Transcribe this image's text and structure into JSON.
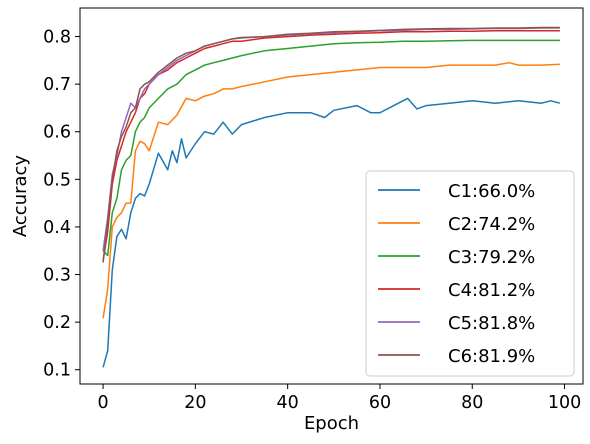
{
  "chart_data": {
    "type": "line",
    "xlabel": "Epoch",
    "ylabel": "Accuracy",
    "xlim": [
      -5,
      104
    ],
    "ylim": [
      0.07,
      0.86
    ],
    "xticks": [
      0,
      20,
      40,
      60,
      80,
      100
    ],
    "yticks": [
      0.1,
      0.2,
      0.3,
      0.4,
      0.5,
      0.6,
      0.7,
      0.8
    ],
    "xtick_labels": [
      "0",
      "20",
      "40",
      "60",
      "80",
      "100"
    ],
    "ytick_labels": [
      "0.1",
      "0.2",
      "0.3",
      "0.4",
      "0.5",
      "0.6",
      "0.7",
      "0.8"
    ],
    "grid": false,
    "legend_position": "lower-right",
    "series": [
      {
        "name": "C1:66.0%",
        "color": "#1f77b4",
        "points": [
          [
            0,
            0.105
          ],
          [
            1,
            0.14
          ],
          [
            2,
            0.31
          ],
          [
            3,
            0.38
          ],
          [
            4,
            0.395
          ],
          [
            5,
            0.375
          ],
          [
            6,
            0.43
          ],
          [
            7,
            0.46
          ],
          [
            8,
            0.47
          ],
          [
            9,
            0.465
          ],
          [
            10,
            0.49
          ],
          [
            12,
            0.555
          ],
          [
            14,
            0.52
          ],
          [
            15,
            0.56
          ],
          [
            16,
            0.535
          ],
          [
            17,
            0.585
          ],
          [
            18,
            0.545
          ],
          [
            20,
            0.575
          ],
          [
            22,
            0.6
          ],
          [
            24,
            0.595
          ],
          [
            26,
            0.62
          ],
          [
            28,
            0.595
          ],
          [
            30,
            0.615
          ],
          [
            35,
            0.63
          ],
          [
            40,
            0.64
          ],
          [
            45,
            0.64
          ],
          [
            48,
            0.63
          ],
          [
            50,
            0.645
          ],
          [
            55,
            0.655
          ],
          [
            58,
            0.64
          ],
          [
            60,
            0.64
          ],
          [
            63,
            0.655
          ],
          [
            66,
            0.67
          ],
          [
            68,
            0.648
          ],
          [
            70,
            0.655
          ],
          [
            75,
            0.66
          ],
          [
            80,
            0.665
          ],
          [
            85,
            0.66
          ],
          [
            90,
            0.665
          ],
          [
            95,
            0.66
          ],
          [
            97,
            0.665
          ],
          [
            99,
            0.66
          ]
        ]
      },
      {
        "name": "C2:74.2%",
        "color": "#ff7f0e",
        "points": [
          [
            0,
            0.208
          ],
          [
            1,
            0.27
          ],
          [
            2,
            0.4
          ],
          [
            3,
            0.42
          ],
          [
            4,
            0.43
          ],
          [
            5,
            0.45
          ],
          [
            6,
            0.45
          ],
          [
            7,
            0.56
          ],
          [
            8,
            0.58
          ],
          [
            9,
            0.575
          ],
          [
            10,
            0.56
          ],
          [
            12,
            0.62
          ],
          [
            14,
            0.615
          ],
          [
            16,
            0.635
          ],
          [
            18,
            0.67
          ],
          [
            20,
            0.665
          ],
          [
            22,
            0.675
          ],
          [
            24,
            0.68
          ],
          [
            26,
            0.69
          ],
          [
            28,
            0.69
          ],
          [
            30,
            0.695
          ],
          [
            35,
            0.705
          ],
          [
            40,
            0.715
          ],
          [
            45,
            0.72
          ],
          [
            50,
            0.725
          ],
          [
            55,
            0.73
          ],
          [
            60,
            0.735
          ],
          [
            65,
            0.735
          ],
          [
            70,
            0.735
          ],
          [
            75,
            0.74
          ],
          [
            80,
            0.74
          ],
          [
            85,
            0.74
          ],
          [
            88,
            0.745
          ],
          [
            90,
            0.74
          ],
          [
            95,
            0.74
          ],
          [
            99,
            0.742
          ]
        ]
      },
      {
        "name": "C3:79.2%",
        "color": "#2ca02c",
        "points": [
          [
            0,
            0.35
          ],
          [
            1,
            0.34
          ],
          [
            2,
            0.43
          ],
          [
            3,
            0.46
          ],
          [
            4,
            0.52
          ],
          [
            5,
            0.54
          ],
          [
            6,
            0.55
          ],
          [
            7,
            0.6
          ],
          [
            8,
            0.62
          ],
          [
            9,
            0.63
          ],
          [
            10,
            0.65
          ],
          [
            12,
            0.67
          ],
          [
            14,
            0.69
          ],
          [
            16,
            0.7
          ],
          [
            18,
            0.72
          ],
          [
            20,
            0.73
          ],
          [
            22,
            0.74
          ],
          [
            24,
            0.745
          ],
          [
            26,
            0.75
          ],
          [
            28,
            0.755
          ],
          [
            30,
            0.76
          ],
          [
            35,
            0.77
          ],
          [
            40,
            0.775
          ],
          [
            45,
            0.78
          ],
          [
            50,
            0.785
          ],
          [
            55,
            0.787
          ],
          [
            60,
            0.788
          ],
          [
            65,
            0.79
          ],
          [
            70,
            0.79
          ],
          [
            75,
            0.791
          ],
          [
            80,
            0.792
          ],
          [
            85,
            0.792
          ],
          [
            90,
            0.792
          ],
          [
            95,
            0.792
          ],
          [
            99,
            0.792
          ]
        ]
      },
      {
        "name": "C4:81.2%",
        "color": "#d62728",
        "points": [
          [
            0,
            0.33
          ],
          [
            1,
            0.39
          ],
          [
            2,
            0.49
          ],
          [
            3,
            0.54
          ],
          [
            4,
            0.57
          ],
          [
            5,
            0.6
          ],
          [
            6,
            0.62
          ],
          [
            7,
            0.64
          ],
          [
            8,
            0.67
          ],
          [
            9,
            0.68
          ],
          [
            10,
            0.7
          ],
          [
            12,
            0.72
          ],
          [
            14,
            0.73
          ],
          [
            16,
            0.745
          ],
          [
            18,
            0.755
          ],
          [
            20,
            0.765
          ],
          [
            22,
            0.775
          ],
          [
            24,
            0.78
          ],
          [
            26,
            0.785
          ],
          [
            28,
            0.79
          ],
          [
            30,
            0.79
          ],
          [
            35,
            0.797
          ],
          [
            40,
            0.8
          ],
          [
            45,
            0.803
          ],
          [
            50,
            0.805
          ],
          [
            55,
            0.807
          ],
          [
            60,
            0.808
          ],
          [
            65,
            0.81
          ],
          [
            70,
            0.81
          ],
          [
            75,
            0.811
          ],
          [
            80,
            0.811
          ],
          [
            85,
            0.812
          ],
          [
            90,
            0.812
          ],
          [
            95,
            0.812
          ],
          [
            99,
            0.812
          ]
        ]
      },
      {
        "name": "C5:81.8%",
        "color": "#9467bd",
        "points": [
          [
            0,
            0.35
          ],
          [
            1,
            0.42
          ],
          [
            2,
            0.51
          ],
          [
            3,
            0.55
          ],
          [
            4,
            0.6
          ],
          [
            5,
            0.63
          ],
          [
            6,
            0.66
          ],
          [
            7,
            0.65
          ],
          [
            8,
            0.67
          ],
          [
            9,
            0.69
          ],
          [
            10,
            0.7
          ],
          [
            12,
            0.72
          ],
          [
            14,
            0.735
          ],
          [
            16,
            0.75
          ],
          [
            18,
            0.76
          ],
          [
            20,
            0.77
          ],
          [
            22,
            0.78
          ],
          [
            24,
            0.785
          ],
          [
            26,
            0.79
          ],
          [
            28,
            0.795
          ],
          [
            30,
            0.797
          ],
          [
            35,
            0.8
          ],
          [
            40,
            0.803
          ],
          [
            45,
            0.806
          ],
          [
            50,
            0.808
          ],
          [
            55,
            0.81
          ],
          [
            60,
            0.812
          ],
          [
            65,
            0.813
          ],
          [
            70,
            0.815
          ],
          [
            75,
            0.815
          ],
          [
            80,
            0.816
          ],
          [
            85,
            0.817
          ],
          [
            90,
            0.817
          ],
          [
            95,
            0.818
          ],
          [
            99,
            0.818
          ]
        ]
      },
      {
        "name": "C6:81.9%",
        "color": "#8c564b",
        "points": [
          [
            0,
            0.325
          ],
          [
            1,
            0.41
          ],
          [
            2,
            0.5
          ],
          [
            3,
            0.56
          ],
          [
            4,
            0.59
          ],
          [
            5,
            0.61
          ],
          [
            6,
            0.64
          ],
          [
            7,
            0.65
          ],
          [
            8,
            0.69
          ],
          [
            9,
            0.7
          ],
          [
            10,
            0.705
          ],
          [
            12,
            0.725
          ],
          [
            14,
            0.74
          ],
          [
            16,
            0.755
          ],
          [
            18,
            0.765
          ],
          [
            20,
            0.77
          ],
          [
            22,
            0.78
          ],
          [
            24,
            0.785
          ],
          [
            26,
            0.79
          ],
          [
            28,
            0.795
          ],
          [
            30,
            0.798
          ],
          [
            35,
            0.8
          ],
          [
            40,
            0.805
          ],
          [
            45,
            0.807
          ],
          [
            50,
            0.81
          ],
          [
            55,
            0.811
          ],
          [
            60,
            0.813
          ],
          [
            65,
            0.815
          ],
          [
            70,
            0.816
          ],
          [
            75,
            0.817
          ],
          [
            80,
            0.817
          ],
          [
            85,
            0.818
          ],
          [
            90,
            0.818
          ],
          [
            95,
            0.819
          ],
          [
            99,
            0.819
          ]
        ]
      }
    ]
  }
}
